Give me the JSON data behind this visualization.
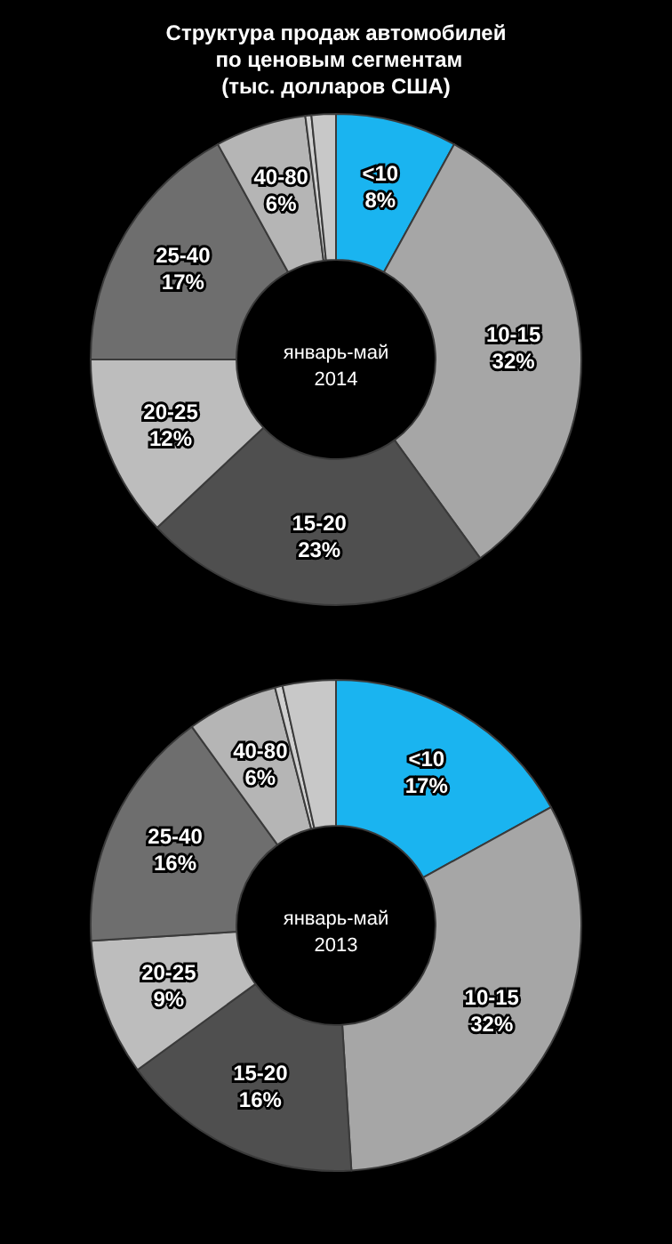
{
  "chart_data": [
    {
      "type": "donut",
      "title": "Структура продаж автомобилей по ценовым сегментам\n(тыс. долларов США)",
      "annotations": [
        "январь-май 2014"
      ],
      "categories": [
        "<10",
        "10-15",
        "15-20",
        "20-25",
        "25-40",
        "40-80",
        null,
        null
      ],
      "values": [
        8,
        32,
        23,
        12,
        17,
        6,
        0.4,
        1.6
      ],
      "value_labels": [
        "8%",
        "32%",
        "23%",
        "12%",
        "17%",
        "6%",
        null,
        null
      ],
      "colors": [
        "#1ab4f0",
        "#a6a6a6",
        "#4f4f4f",
        "#bdbdbd",
        "#6e6e6e",
        "#b5b5b5",
        "#d0d0d0",
        "#c8c8c8"
      ]
    },
    {
      "type": "donut",
      "annotations": [
        "январь-май 2013"
      ],
      "categories": [
        "<10",
        "10-15",
        "15-20",
        "20-25",
        "25-40",
        "40-80",
        null,
        null
      ],
      "values": [
        17,
        32,
        16,
        9,
        16,
        6,
        0.5,
        3.5
      ],
      "value_labels": [
        "17%",
        "32%",
        "16%",
        "9%",
        "16%",
        "6%",
        null,
        null
      ],
      "colors": [
        "#1ab4f0",
        "#a6a6a6",
        "#4f4f4f",
        "#bdbdbd",
        "#6e6e6e",
        "#b5b5b5",
        "#d0d0d0",
        "#c8c8c8"
      ]
    }
  ]
}
